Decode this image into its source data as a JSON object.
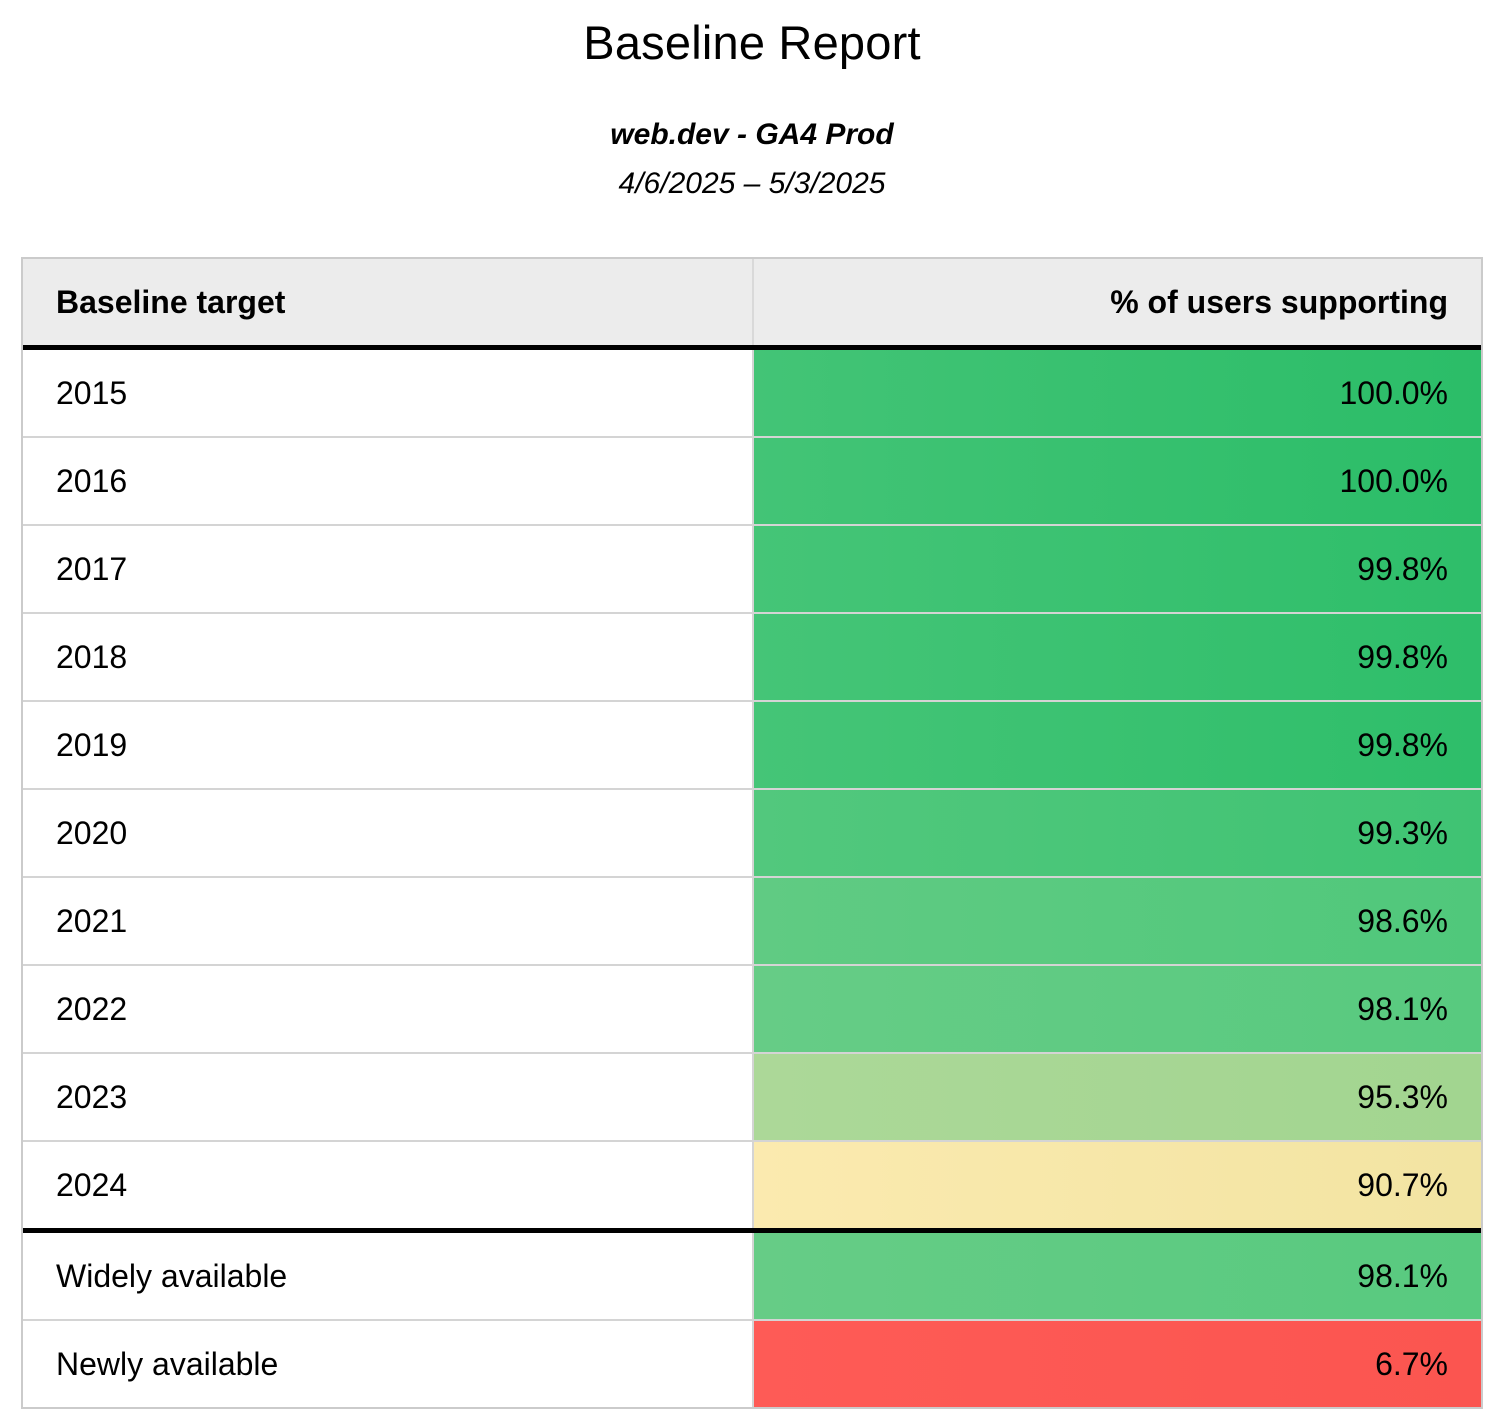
{
  "report": {
    "title": "Baseline Report",
    "subtitle": "web.dev - GA4 Prod",
    "date_range": "4/6/2025 – 5/3/2025"
  },
  "table": {
    "header": {
      "target": "Baseline target",
      "value": "% of users supporting"
    },
    "rows": [
      {
        "target": "2015",
        "value": "100.0%",
        "bg": {
          "start": "#43C476",
          "end": "#2BBD68"
        }
      },
      {
        "target": "2016",
        "value": "100.0%",
        "bg": {
          "start": "#43C476",
          "end": "#2BBD68"
        }
      },
      {
        "target": "2017",
        "value": "99.8%",
        "bg": {
          "start": "#45C577",
          "end": "#2EBE6A"
        }
      },
      {
        "target": "2018",
        "value": "99.8%",
        "bg": {
          "start": "#45C577",
          "end": "#2EBE6A"
        }
      },
      {
        "target": "2019",
        "value": "99.8%",
        "bg": {
          "start": "#45C577",
          "end": "#2EBE6A"
        }
      },
      {
        "target": "2020",
        "value": "99.3%",
        "bg": {
          "start": "#52C87D",
          "end": "#3FC373"
        }
      },
      {
        "target": "2021",
        "value": "98.6%",
        "bg": {
          "start": "#60CB83",
          "end": "#50C87B"
        }
      },
      {
        "target": "2022",
        "value": "98.1%",
        "bg": {
          "start": "#66CC86",
          "end": "#58CA7F"
        }
      },
      {
        "target": "2023",
        "value": "95.3%",
        "bg": {
          "start": "#ACD898",
          "end": "#A2D590"
        }
      },
      {
        "target": "2024",
        "value": "90.7%",
        "bg": {
          "start": "#FBEAAF",
          "end": "#F2E4A2"
        }
      },
      {
        "target": "Widely available",
        "value": "98.1%",
        "bg": {
          "start": "#66CC86",
          "end": "#58CA7F"
        }
      },
      {
        "target": "Newly available",
        "value": "6.7%",
        "bg": {
          "start": "#FE5B56",
          "end": "#FB5550"
        }
      }
    ]
  },
  "chart_data": {
    "type": "table",
    "title": "Baseline Report",
    "subtitle": "web.dev - GA4 Prod",
    "date_range": "4/6/2025 – 5/3/2025",
    "columns": [
      "Baseline target",
      "% of users supporting"
    ],
    "categories": [
      "2015",
      "2016",
      "2017",
      "2018",
      "2019",
      "2020",
      "2021",
      "2022",
      "2023",
      "2024",
      "Widely available",
      "Newly available"
    ],
    "values": [
      100.0,
      100.0,
      99.8,
      99.8,
      99.8,
      99.3,
      98.6,
      98.1,
      95.3,
      90.7,
      98.1,
      6.7
    ],
    "value_unit": "%",
    "color_scale": {
      "high_green": "#34C372",
      "mid_yellow": "#FCE9AC",
      "low_red": "#FE5B56",
      "light_green": "#A8D794"
    },
    "layout": {
      "header_bg": "#ECECEC",
      "thick_border": "#000000",
      "thin_border": "#D4D4D4",
      "section_break_after_index": 9
    }
  }
}
